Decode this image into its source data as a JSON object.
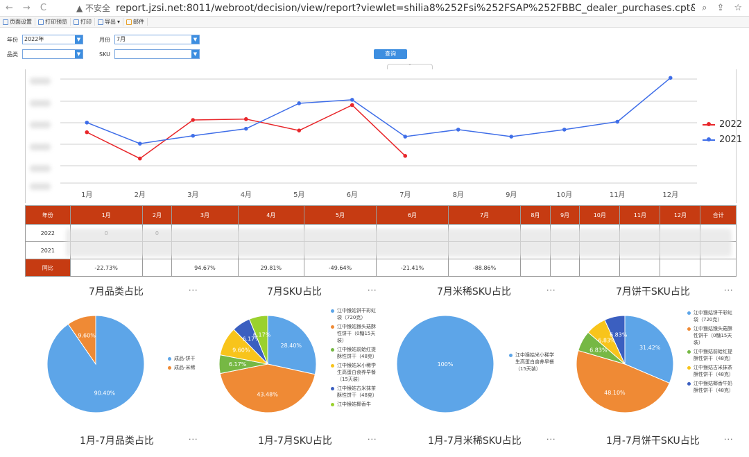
{
  "browser": {
    "security_label": "▲ 不安全",
    "url": "report.jzsi.net:8011/webroot/decision/view/report?viewlet=shilia8%252Fsi%252FSAP%252FBBC_dealer_purchases.cpt&ref_t..."
  },
  "toolbar": {
    "items": [
      "页面设置",
      "打印预览",
      "打印",
      "导出",
      "邮件"
    ]
  },
  "filters": {
    "year_label": "年份",
    "year_value": "2022年",
    "month_label": "月份",
    "month_value": "7月",
    "category_label": "品类",
    "category_value": "",
    "sku_label": "SKU",
    "sku_value": "",
    "query_button": "查询"
  },
  "chart_data": [
    {
      "type": "line",
      "categories": [
        "1月",
        "2月",
        "3月",
        "4月",
        "5月",
        "6月",
        "7月",
        "8月",
        "9月",
        "10月",
        "11月",
        "12月"
      ],
      "series": [
        {
          "name": "2022",
          "color": "#e8262a",
          "values": [
            0.58,
            0.28,
            0.72,
            0.73,
            0.6,
            0.89,
            0.31,
            null,
            null,
            null,
            null,
            null
          ]
        },
        {
          "name": "2021",
          "color": "#3f6ee8",
          "values": [
            0.69,
            0.45,
            0.54,
            0.62,
            0.91,
            0.95,
            0.53,
            0.61,
            0.53,
            0.61,
            0.7,
            1.2
          ]
        }
      ],
      "legend": "right"
    },
    {
      "type": "pie",
      "title": "7月品类占比",
      "slices": [
        {
          "label": "成品-饼干",
          "value": 90.4,
          "color": "#5da5e8"
        },
        {
          "label": "成品-米稀",
          "value": 9.6,
          "color": "#ef8a35"
        }
      ]
    },
    {
      "type": "pie",
      "title": "7月SKU占比",
      "slices": [
        {
          "label": "江中猴姑饼干彩虹袋（720克）",
          "value": 28.4,
          "color": "#5da5e8"
        },
        {
          "label": "江中猴姑猴头菇酥性饼干（0糖15天装）",
          "value": 43.48,
          "color": "#ef8a35"
        },
        {
          "label": "江中猴姑前蛤红提酥性饼干（48克）",
          "value": 6.17,
          "color": "#76b844"
        },
        {
          "label": "江中猴姑米小稀学生高蛋白食养早餐（15天装）",
          "value": 9.6,
          "color": "#f8c41b"
        },
        {
          "label": "江中猴姑古米抹茶酥性饼干（48克）",
          "value": 6.17,
          "color": "#3b5fc0"
        },
        {
          "label": "江中猴姑椰香牛",
          "value": 6.17,
          "color": "#9ad12e"
        }
      ]
    },
    {
      "type": "pie",
      "title": "7月米稀SKU占比",
      "slices": [
        {
          "label": "江中猴姑米小稀学生高蛋白食养早餐（15天装）",
          "value": 100,
          "color": "#5da5e8"
        }
      ]
    },
    {
      "type": "pie",
      "title": "7月饼干SKU占比",
      "slices": [
        {
          "label": "江中猴姑饼干彩虹袋（720克）",
          "value": 31.42,
          "color": "#5da5e8"
        },
        {
          "label": "江中猴姑猴头菇酥性饼干（0糖15天装）",
          "value": 48.1,
          "color": "#ef8a35"
        },
        {
          "label": "江中猴姑前蛤红提酥性饼干（48克）",
          "value": 6.83,
          "color": "#76b844"
        },
        {
          "label": "江中猴姑古米抹茶酥性饼干（48克）",
          "value": 6.83,
          "color": "#f8c41b"
        },
        {
          "label": "江中猴姑椰香牛奶酥性饼干（48克）",
          "value": 6.83,
          "color": "#3b5fc0"
        }
      ]
    }
  ],
  "table": {
    "headers": [
      "年份",
      "1月",
      "2月",
      "3月",
      "4月",
      "5月",
      "6月",
      "7月",
      "8月",
      "9月",
      "10月",
      "11月",
      "12月",
      "合计"
    ],
    "rows": [
      {
        "label": "2022",
        "cells": [
          "0",
          "0",
          "",
          "",
          "",
          "",
          "",
          "",
          "",
          "",
          "",
          "",
          ""
        ]
      },
      {
        "label": "2021",
        "cells": [
          "",
          "",
          "",
          "",
          "",
          "",
          "",
          "",
          "",
          "",
          "",
          "",
          ""
        ]
      },
      {
        "label": "同比",
        "cells": [
          "-22.73%",
          "",
          "94.67%",
          "29.81%",
          "-49.64%",
          "-21.41%",
          "-88.86%",
          "",
          "",
          "",
          "",
          "",
          ""
        ]
      }
    ]
  },
  "pies_bottom_titles": [
    "1月-7月品类占比",
    "1月-7月SKU占比",
    "1月-7月米稀SKU占比",
    "1月-7月饼干SKU占比"
  ],
  "more_label": "···"
}
